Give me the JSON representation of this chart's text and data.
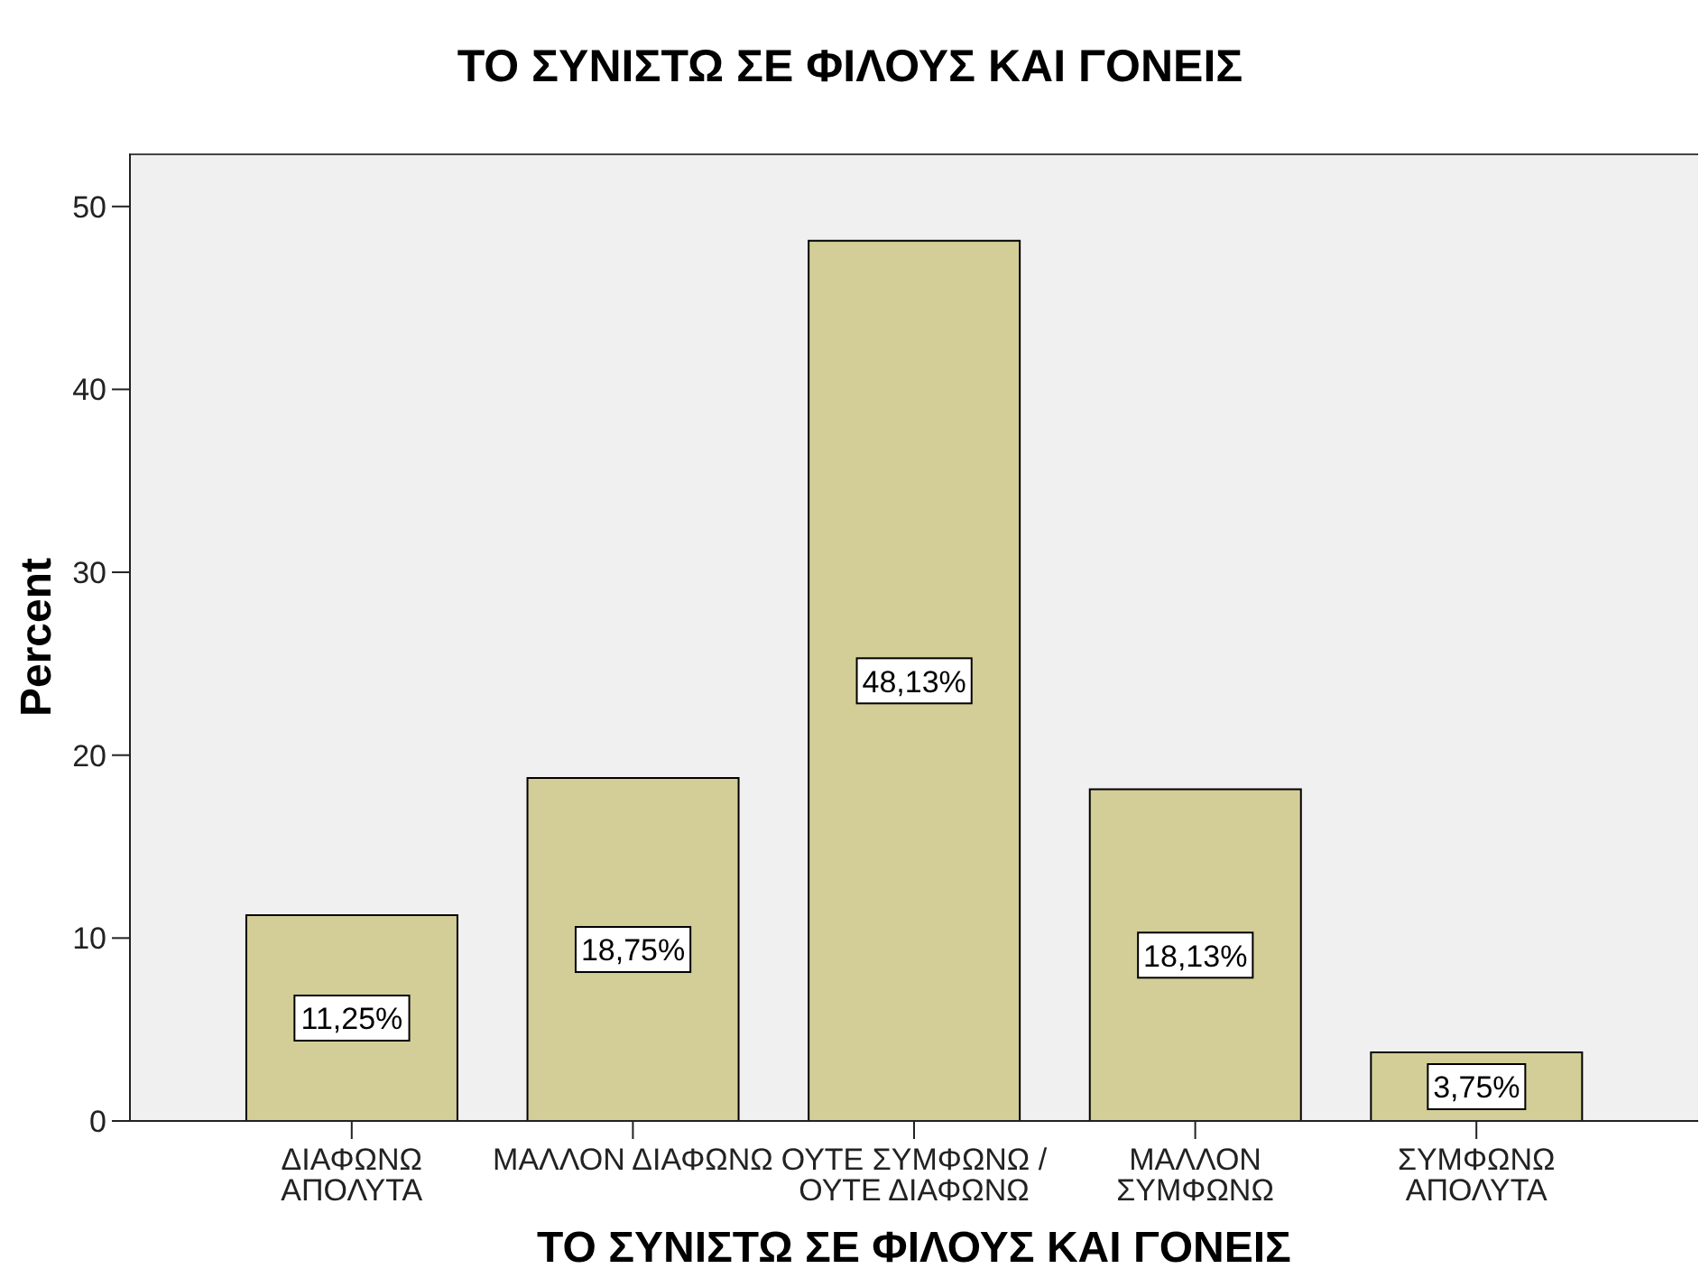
{
  "chart_data": {
    "type": "bar",
    "title": "ΤΟ ΣΥΝΙΣΤΩ ΣΕ ΦΙΛΟΥΣ ΚΑΙ ΓΟΝΕΙΣ",
    "xlabel": "ΤΟ ΣΥΝΙΣΤΩ ΣΕ ΦΙΛΟΥΣ ΚΑΙ ΓΟΝΕΙΣ",
    "ylabel": "Percent",
    "categories": [
      "ΔΙΑΦΩΝΩ\nΑΠΟΛΥΤΑ",
      "ΜΑΛΛΟΝ ΔΙΑΦΩΝΩ",
      "ΟΥΤΕ ΣΥΜΦΩΝΩ /\nΟΥΤΕ ΔΙΑΦΩΝΩ",
      "ΜΑΛΛΟΝ\nΣΥΜΦΩΝΩ",
      "ΣΥΜΦΩΝΩ\nΑΠΟΛΥΤΑ"
    ],
    "values": [
      11.25,
      18.75,
      48.13,
      18.13,
      3.75
    ],
    "value_labels": [
      "11,25%",
      "18,75%",
      "48,13%",
      "18,13%",
      "3,75%"
    ],
    "color": "#d3ce97",
    "ylim": [
      0,
      52.9
    ],
    "yticks": [
      0,
      10,
      20,
      30,
      40,
      50
    ]
  }
}
